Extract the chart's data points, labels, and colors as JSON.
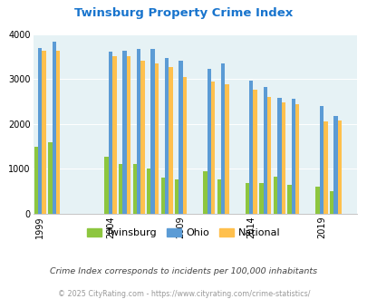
{
  "title": "Twinsburg Property Crime Index",
  "title_color": "#1874CD",
  "years_data": [
    1999,
    2000,
    2004,
    2005,
    2006,
    2007,
    2008,
    2009,
    2011,
    2012,
    2014,
    2015,
    2016,
    2017,
    2019,
    2020
  ],
  "twinsburg": [
    1500,
    1600,
    1280,
    1110,
    1110,
    1010,
    800,
    760,
    940,
    760,
    680,
    680,
    820,
    650,
    600,
    510
  ],
  "ohio": [
    3700,
    3840,
    3620,
    3640,
    3680,
    3680,
    3470,
    3420,
    3230,
    3360,
    2960,
    2820,
    2590,
    2560,
    2400,
    2180
  ],
  "national": [
    3630,
    3640,
    3520,
    3510,
    3420,
    3360,
    3270,
    3040,
    2950,
    2890,
    2760,
    2600,
    2490,
    2450,
    2050,
    2080
  ],
  "twinsburg_color": "#8DC63F",
  "ohio_color": "#5B9BD5",
  "national_color": "#FFC04D",
  "bg_color": "#E6F2F5",
  "ylim": [
    0,
    4000
  ],
  "yticks": [
    0,
    1000,
    2000,
    3000,
    4000
  ],
  "xtick_labels": [
    "1999",
    "2004",
    "2009",
    "2014",
    "2019"
  ],
  "xtick_years": [
    1999,
    2004,
    2009,
    2014,
    2019
  ],
  "note": "Crime Index corresponds to incidents per 100,000 inhabitants",
  "footer": "© 2025 CityRating.com - https://www.cityrating.com/crime-statistics/",
  "note_color": "#444444",
  "footer_color": "#999999"
}
